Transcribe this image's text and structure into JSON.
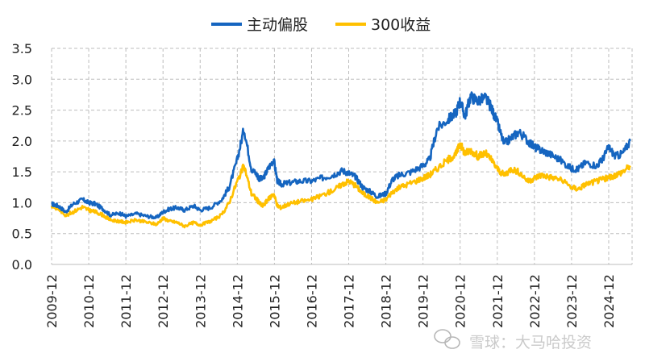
{
  "watermark": "雪球：大马哈投资",
  "chart_data": {
    "type": "line",
    "title": "",
    "xlabel": "",
    "ylabel": "",
    "x_ticks": [
      "2009-12",
      "2010-12",
      "2011-12",
      "2012-12",
      "2013-12",
      "2014-12",
      "2015-12",
      "2016-12",
      "2017-12",
      "2018-12",
      "2019-12",
      "2020-12",
      "2021-12",
      "2022-12",
      "2023-12",
      "2024-12"
    ],
    "y_ticks": [
      "0.0",
      "0.5",
      "1.0",
      "1.5",
      "2.0",
      "2.5",
      "3.0",
      "3.5"
    ],
    "ylim": [
      0,
      3.5
    ],
    "xlim": [
      2009.92,
      2025.55
    ],
    "grid": true,
    "legend_position": "top-center",
    "series": [
      {
        "name": "主动偏股",
        "color": "#1565c0",
        "x": [
          2009.92,
          2010.1,
          2010.3,
          2010.5,
          2010.75,
          2010.92,
          2011.1,
          2011.3,
          2011.5,
          2011.75,
          2011.92,
          2012.2,
          2012.5,
          2012.75,
          2012.92,
          2013.1,
          2013.3,
          2013.5,
          2013.75,
          2013.92,
          2014.2,
          2014.5,
          2014.7,
          2014.92,
          2015.1,
          2015.3,
          2015.45,
          2015.5,
          2015.6,
          2015.75,
          2015.9,
          2016.0,
          2016.1,
          2016.3,
          2016.6,
          2016.92,
          2017.2,
          2017.5,
          2017.75,
          2017.92,
          2018.1,
          2018.3,
          2018.5,
          2018.7,
          2018.92,
          2019.1,
          2019.3,
          2019.6,
          2019.92,
          2020.1,
          2020.3,
          2020.6,
          2020.8,
          2020.92,
          2021.05,
          2021.2,
          2021.4,
          2021.6,
          2021.75,
          2021.92,
          2022.1,
          2022.3,
          2022.5,
          2022.75,
          2022.92,
          2023.1,
          2023.3,
          2023.6,
          2023.92,
          2024.1,
          2024.3,
          2024.6,
          2024.75,
          2024.92,
          2025.1,
          2025.3,
          2025.5
        ],
        "y": [
          0.98,
          0.95,
          0.85,
          0.98,
          1.05,
          1.0,
          0.98,
          0.9,
          0.8,
          0.83,
          0.78,
          0.82,
          0.78,
          0.76,
          0.85,
          0.9,
          0.92,
          0.88,
          0.95,
          0.88,
          0.92,
          1.05,
          1.25,
          1.7,
          2.2,
          1.55,
          1.45,
          1.4,
          1.38,
          1.55,
          1.7,
          1.35,
          1.3,
          1.32,
          1.35,
          1.35,
          1.4,
          1.45,
          1.52,
          1.48,
          1.42,
          1.25,
          1.18,
          1.1,
          1.15,
          1.38,
          1.45,
          1.5,
          1.6,
          1.7,
          2.2,
          2.35,
          2.45,
          2.65,
          2.4,
          2.72,
          2.65,
          2.7,
          2.55,
          2.3,
          1.95,
          2.05,
          2.15,
          2.0,
          1.9,
          1.85,
          1.8,
          1.7,
          1.55,
          1.55,
          1.65,
          1.6,
          1.7,
          1.9,
          1.75,
          1.8,
          2.0
        ]
      },
      {
        "name": "300收益",
        "color": "#ffc000",
        "x": [
          2009.92,
          2010.1,
          2010.3,
          2010.5,
          2010.75,
          2010.92,
          2011.1,
          2011.3,
          2011.5,
          2011.75,
          2011.92,
          2012.2,
          2012.5,
          2012.75,
          2012.92,
          2013.1,
          2013.3,
          2013.5,
          2013.75,
          2013.92,
          2014.2,
          2014.5,
          2014.7,
          2014.92,
          2015.1,
          2015.3,
          2015.45,
          2015.5,
          2015.6,
          2015.75,
          2015.9,
          2016.0,
          2016.1,
          2016.3,
          2016.6,
          2016.92,
          2017.2,
          2017.5,
          2017.75,
          2017.92,
          2018.1,
          2018.3,
          2018.5,
          2018.7,
          2018.92,
          2019.1,
          2019.3,
          2019.6,
          2019.92,
          2020.1,
          2020.3,
          2020.6,
          2020.8,
          2020.92,
          2021.05,
          2021.2,
          2021.4,
          2021.6,
          2021.75,
          2021.92,
          2022.1,
          2022.3,
          2022.5,
          2022.75,
          2022.92,
          2023.1,
          2023.3,
          2023.6,
          2023.92,
          2024.1,
          2024.3,
          2024.6,
          2024.75,
          2024.92,
          2025.1,
          2025.3,
          2025.5
        ],
        "y": [
          0.95,
          0.9,
          0.8,
          0.85,
          0.93,
          0.88,
          0.85,
          0.8,
          0.72,
          0.7,
          0.68,
          0.72,
          0.68,
          0.65,
          0.75,
          0.7,
          0.68,
          0.62,
          0.68,
          0.64,
          0.7,
          0.8,
          1.0,
          1.35,
          1.6,
          1.15,
          1.05,
          1.0,
          0.95,
          1.05,
          1.15,
          0.95,
          0.92,
          0.98,
          1.02,
          1.05,
          1.12,
          1.2,
          1.3,
          1.35,
          1.28,
          1.15,
          1.08,
          1.0,
          1.05,
          1.18,
          1.25,
          1.32,
          1.4,
          1.45,
          1.55,
          1.7,
          1.78,
          1.95,
          1.8,
          1.85,
          1.75,
          1.8,
          1.7,
          1.55,
          1.45,
          1.55,
          1.5,
          1.35,
          1.4,
          1.45,
          1.42,
          1.38,
          1.25,
          1.22,
          1.3,
          1.35,
          1.38,
          1.4,
          1.45,
          1.5,
          1.6
        ]
      }
    ]
  }
}
